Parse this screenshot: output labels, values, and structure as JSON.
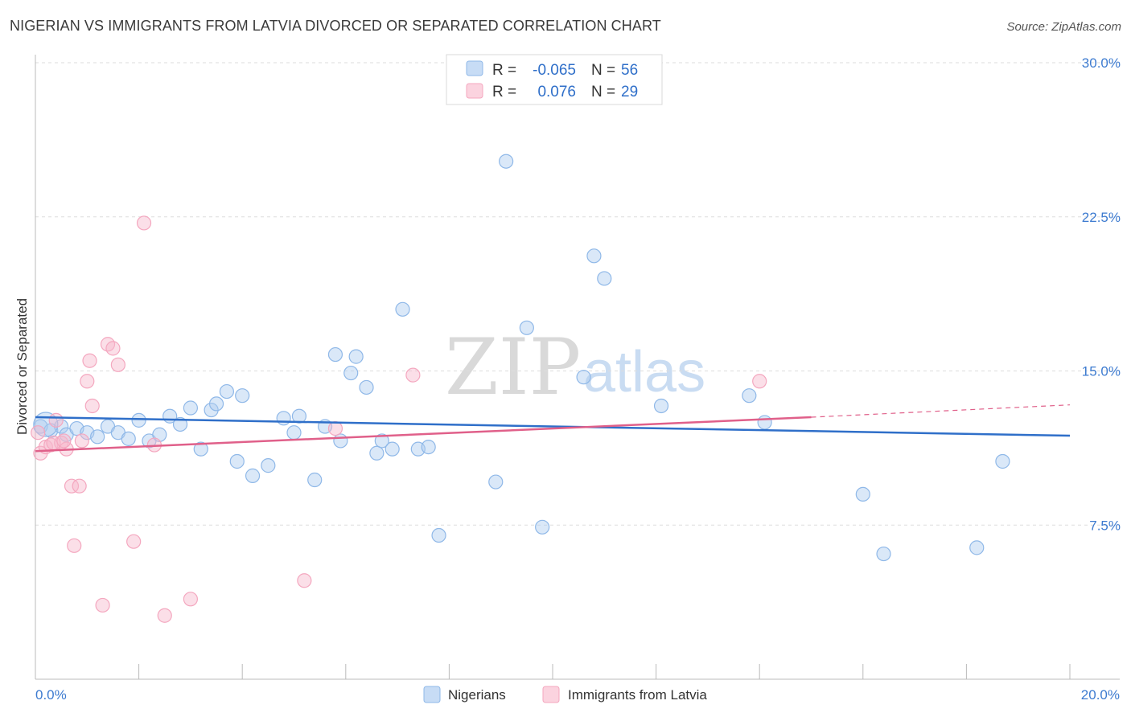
{
  "header": {
    "title": "NIGERIAN VS IMMIGRANTS FROM LATVIA DIVORCED OR SEPARATED CORRELATION CHART",
    "source": "Source: ZipAtlas.com"
  },
  "watermark": {
    "zip": "ZIP",
    "atlas": "atlas"
  },
  "chart_data": {
    "type": "scatter",
    "title": "NIGERIAN VS IMMIGRANTS FROM LATVIA DIVORCED OR SEPARATED CORRELATION CHART",
    "xlabel": "",
    "ylabel": "Divorced or Separated",
    "xlim": [
      0,
      20
    ],
    "ylim": [
      0,
      30
    ],
    "x_tick_labels": [
      "0.0%",
      "20.0%"
    ],
    "y_ticks": [
      7.5,
      15.0,
      22.5,
      30.0
    ],
    "y_tick_labels": [
      "7.5%",
      "15.0%",
      "22.5%",
      "30.0%"
    ],
    "grid": true,
    "legend_position": "top-center",
    "stats": [
      {
        "r_label": "R =",
        "r_value": "-0.065",
        "n_label": "N =",
        "n_value": "56"
      },
      {
        "r_label": "R =",
        "r_value": "0.076",
        "n_label": "N =",
        "n_value": "29"
      }
    ],
    "series": [
      {
        "name": "Nigerians",
        "color": "#8fb8e8",
        "line_color": "#2f6fc9",
        "trend": {
          "x": [
            0,
            20
          ],
          "y": [
            12.75,
            11.85
          ]
        },
        "points": [
          [
            0.1,
            12.3
          ],
          [
            0.3,
            12.1
          ],
          [
            0.5,
            12.3
          ],
          [
            0.6,
            11.9
          ],
          [
            0.8,
            12.2
          ],
          [
            1.0,
            12.0
          ],
          [
            1.2,
            11.8
          ],
          [
            1.4,
            12.3
          ],
          [
            1.6,
            12.0
          ],
          [
            1.8,
            11.7
          ],
          [
            2.0,
            12.6
          ],
          [
            2.2,
            11.6
          ],
          [
            2.4,
            11.9
          ],
          [
            2.6,
            12.8
          ],
          [
            2.8,
            12.4
          ],
          [
            3.0,
            13.2
          ],
          [
            3.2,
            11.2
          ],
          [
            3.4,
            13.1
          ],
          [
            3.5,
            13.4
          ],
          [
            3.7,
            14.0
          ],
          [
            3.9,
            10.6
          ],
          [
            4.0,
            13.8
          ],
          [
            4.2,
            9.9
          ],
          [
            4.5,
            10.4
          ],
          [
            4.8,
            12.7
          ],
          [
            5.0,
            12.0
          ],
          [
            5.1,
            12.8
          ],
          [
            5.4,
            9.7
          ],
          [
            5.6,
            12.3
          ],
          [
            5.8,
            15.8
          ],
          [
            5.9,
            11.6
          ],
          [
            6.1,
            14.9
          ],
          [
            6.2,
            15.7
          ],
          [
            6.4,
            14.2
          ],
          [
            6.6,
            11.0
          ],
          [
            6.7,
            11.6
          ],
          [
            6.9,
            11.2
          ],
          [
            7.1,
            18.0
          ],
          [
            7.4,
            11.2
          ],
          [
            7.6,
            11.3
          ],
          [
            7.8,
            7.0
          ],
          [
            8.9,
            9.6
          ],
          [
            9.1,
            25.2
          ],
          [
            9.5,
            17.1
          ],
          [
            9.8,
            7.4
          ],
          [
            10.6,
            14.7
          ],
          [
            10.8,
            20.6
          ],
          [
            11.0,
            19.5
          ],
          [
            12.1,
            13.3
          ],
          [
            13.8,
            13.8
          ],
          [
            14.1,
            12.5
          ],
          [
            16.0,
            9.0
          ],
          [
            16.4,
            6.1
          ],
          [
            18.2,
            6.4
          ],
          [
            18.7,
            10.6
          ],
          [
            0.2,
            12.4
          ]
        ]
      },
      {
        "name": "Immigrants from Latvia",
        "color": "#f4a7bf",
        "line_color": "#e0608a",
        "trend": {
          "x": [
            0,
            15
          ],
          "y": [
            11.1,
            12.75
          ]
        },
        "trend_dashed_to": {
          "x": 20,
          "y": 13.35
        },
        "points": [
          [
            0.1,
            11.0
          ],
          [
            0.2,
            11.3
          ],
          [
            0.3,
            11.4
          ],
          [
            0.4,
            12.6
          ],
          [
            0.5,
            11.5
          ],
          [
            0.6,
            11.2
          ],
          [
            0.7,
            9.4
          ],
          [
            0.75,
            6.5
          ],
          [
            0.85,
            9.4
          ],
          [
            0.9,
            11.6
          ],
          [
            1.0,
            14.5
          ],
          [
            1.05,
            15.5
          ],
          [
            1.1,
            13.3
          ],
          [
            1.3,
            3.6
          ],
          [
            1.4,
            16.3
          ],
          [
            1.5,
            16.1
          ],
          [
            1.6,
            15.3
          ],
          [
            1.9,
            6.7
          ],
          [
            2.1,
            22.2
          ],
          [
            2.3,
            11.4
          ],
          [
            2.5,
            3.1
          ],
          [
            3.0,
            3.9
          ],
          [
            5.2,
            4.8
          ],
          [
            5.8,
            12.2
          ],
          [
            7.3,
            14.8
          ],
          [
            14.0,
            14.5
          ],
          [
            0.05,
            12.0
          ],
          [
            0.35,
            11.5
          ],
          [
            0.55,
            11.6
          ]
        ]
      }
    ]
  }
}
